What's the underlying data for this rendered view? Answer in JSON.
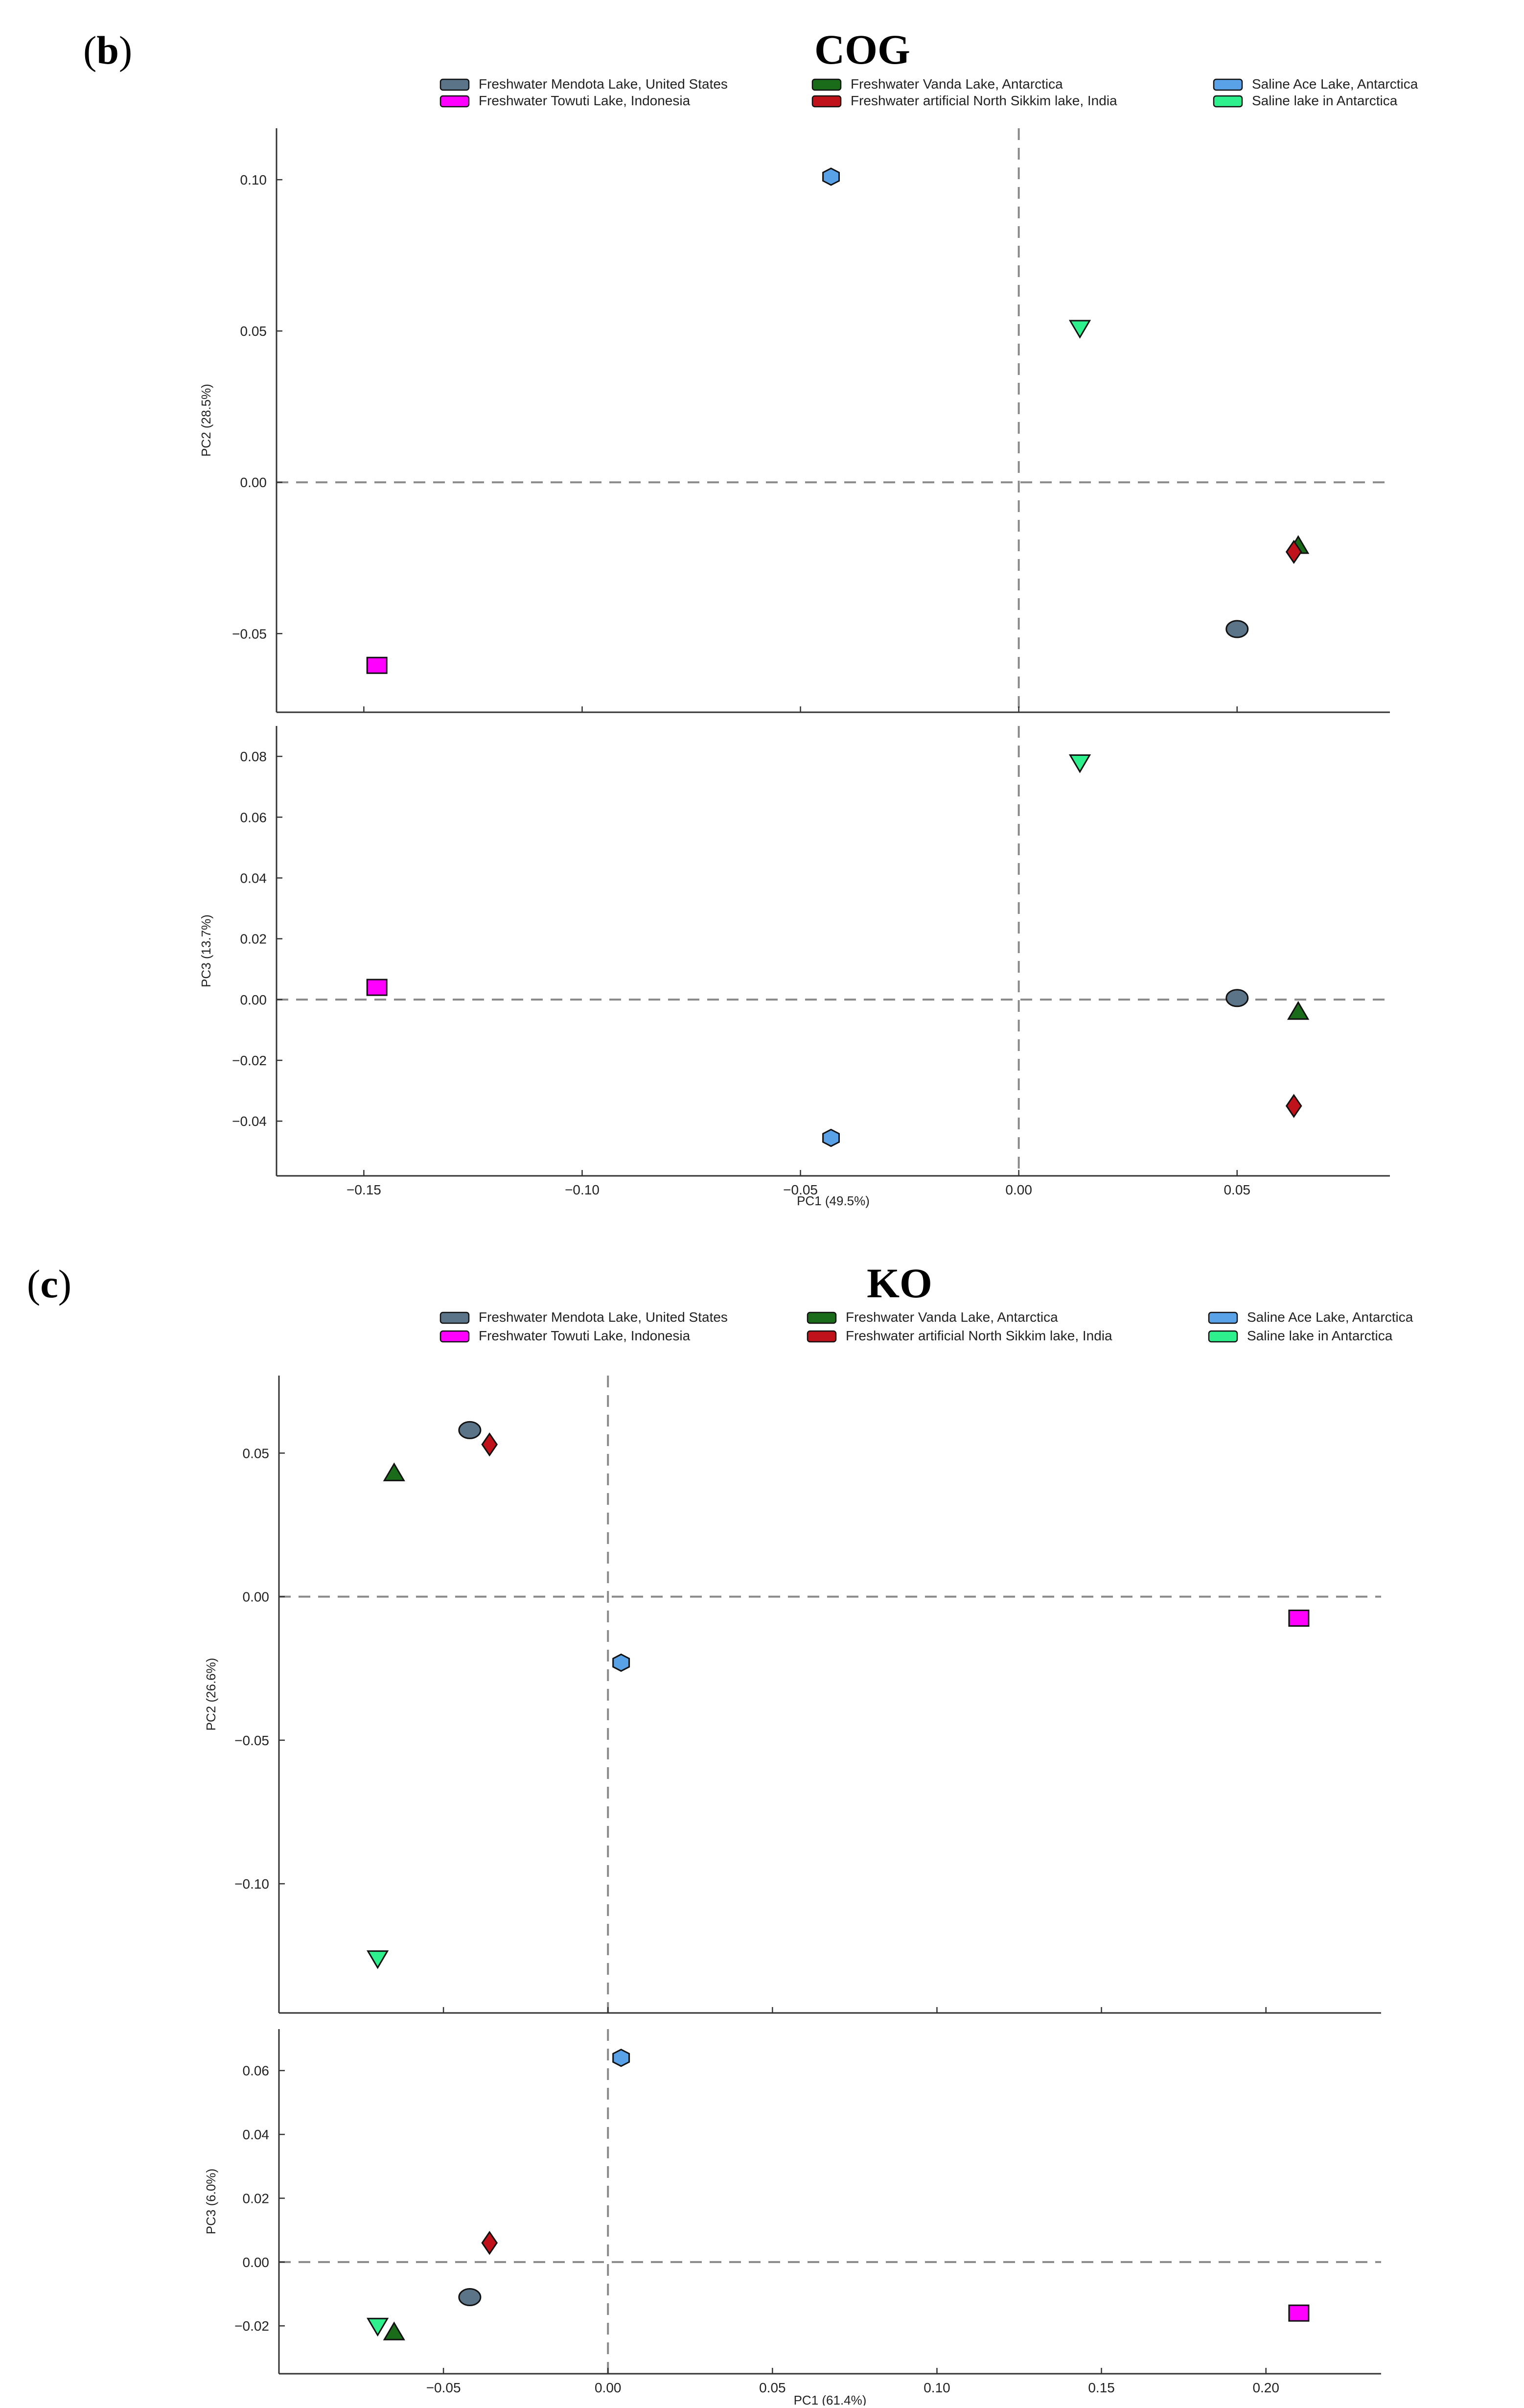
{
  "figure": {
    "panel_b": {
      "letter": "b",
      "title": "COG"
    },
    "panel_c": {
      "letter": "c",
      "title": "KO"
    }
  },
  "legend": [
    {
      "key": "mendota",
      "label": "Freshwater Mendota Lake, United States",
      "color": "#5b7488",
      "shape": "circle"
    },
    {
      "key": "towuti",
      "label": "Freshwater Towuti Lake, Indonesia",
      "color": "#ff00ff",
      "shape": "square"
    },
    {
      "key": "vanda",
      "label": "Freshwater Vanda Lake, Antarctica",
      "color": "#1a6b1a",
      "shape": "triangle"
    },
    {
      "key": "sikkim",
      "label": "Freshwater artificial North Sikkim lake, India",
      "color": "#c0121a",
      "shape": "diamond"
    },
    {
      "key": "ace",
      "label": "Saline Ace Lake, Antarctica",
      "color": "#5aa2e8",
      "shape": "hexagon"
    },
    {
      "key": "saline",
      "label": "Saline lake in Antarctica",
      "color": "#2ef08c",
      "shape": "triangle-down"
    }
  ],
  "chart_data": [
    {
      "id": "cog-pc1-pc2",
      "panel": "b",
      "type": "scatter",
      "title": "COG",
      "xlabel": "",
      "ylabel": "PC2 (28.5%)",
      "xlim": [
        -0.17,
        0.085
      ],
      "ylim": [
        -0.076,
        0.117
      ],
      "xticks": [
        -0.15,
        -0.1,
        -0.05,
        0.0,
        0.05
      ],
      "xtick_labels": [
        "",
        "",
        "",
        "",
        ""
      ],
      "yticks": [
        -0.05,
        0.0,
        0.05,
        0.1
      ],
      "ytick_labels": [
        "−0.05",
        "0.00",
        "0.05",
        "0.10"
      ],
      "points": [
        {
          "key": "towuti",
          "x": -0.147,
          "y": -0.0605
        },
        {
          "key": "ace",
          "x": -0.043,
          "y": 0.101
        },
        {
          "key": "saline",
          "x": 0.014,
          "y": 0.051
        },
        {
          "key": "vanda",
          "x": 0.064,
          "y": -0.021
        },
        {
          "key": "sikkim",
          "x": 0.063,
          "y": -0.023
        },
        {
          "key": "mendota",
          "x": 0.05,
          "y": -0.0485
        }
      ]
    },
    {
      "id": "cog-pc1-pc3",
      "panel": "b",
      "type": "scatter",
      "title": "",
      "xlabel": "PC1 (49.5%)",
      "ylabel": "PC3 (13.7%)",
      "xlim": [
        -0.17,
        0.085
      ],
      "ylim": [
        -0.058,
        0.09
      ],
      "xticks": [
        -0.15,
        -0.1,
        -0.05,
        0.0,
        0.05
      ],
      "xtick_labels": [
        "−0.15",
        "−0.10",
        "−0.05",
        "0.00",
        "0.05"
      ],
      "yticks": [
        -0.04,
        -0.02,
        0.0,
        0.02,
        0.04,
        0.06,
        0.08
      ],
      "ytick_labels": [
        "−0.04",
        "−0.02",
        "0.00",
        "0.02",
        "0.04",
        "0.06",
        "0.08"
      ],
      "points": [
        {
          "key": "towuti",
          "x": -0.147,
          "y": 0.004
        },
        {
          "key": "ace",
          "x": -0.043,
          "y": -0.0455
        },
        {
          "key": "saline",
          "x": 0.014,
          "y": 0.078
        },
        {
          "key": "mendota",
          "x": 0.05,
          "y": 0.0005
        },
        {
          "key": "vanda",
          "x": 0.064,
          "y": -0.004
        },
        {
          "key": "sikkim",
          "x": 0.063,
          "y": -0.035
        }
      ]
    },
    {
      "id": "ko-pc1-pc2",
      "panel": "c",
      "type": "scatter",
      "title": "KO",
      "xlabel": "",
      "ylabel": "PC2 (26.6%)",
      "xlim": [
        -0.1,
        0.235
      ],
      "ylim": [
        -0.145,
        0.077
      ],
      "xticks": [
        -0.05,
        0.0,
        0.05,
        0.1,
        0.15,
        0.2
      ],
      "xtick_labels": [
        "",
        "",
        "",
        "",
        "",
        ""
      ],
      "yticks": [
        -0.1,
        -0.05,
        0.0,
        0.05
      ],
      "ytick_labels": [
        "−0.10",
        "−0.05",
        "0.00",
        "0.05"
      ],
      "points": [
        {
          "key": "mendota",
          "x": -0.042,
          "y": 0.058
        },
        {
          "key": "sikkim",
          "x": -0.036,
          "y": 0.053
        },
        {
          "key": "vanda",
          "x": -0.065,
          "y": 0.043
        },
        {
          "key": "ace",
          "x": 0.004,
          "y": -0.023
        },
        {
          "key": "towuti",
          "x": 0.21,
          "y": -0.0075
        },
        {
          "key": "saline",
          "x": -0.07,
          "y": -0.126
        }
      ]
    },
    {
      "id": "ko-pc1-pc3",
      "panel": "c",
      "type": "scatter",
      "title": "",
      "xlabel": "PC1 (61.4%)",
      "ylabel": "PC3 (6.0%)",
      "xlim": [
        -0.1,
        0.235
      ],
      "ylim": [
        -0.035,
        0.073
      ],
      "xticks": [
        -0.05,
        0.0,
        0.05,
        0.1,
        0.15,
        0.2
      ],
      "xtick_labels": [
        "−0.05",
        "0.00",
        "0.05",
        "0.10",
        "0.15",
        "0.20"
      ],
      "yticks": [
        -0.02,
        0.0,
        0.02,
        0.04,
        0.06
      ],
      "ytick_labels": [
        "−0.02",
        "0.00",
        "0.02",
        "0.04",
        "0.06"
      ],
      "points": [
        {
          "key": "ace",
          "x": 0.004,
          "y": 0.064
        },
        {
          "key": "sikkim",
          "x": -0.036,
          "y": 0.006
        },
        {
          "key": "mendota",
          "x": -0.042,
          "y": -0.011
        },
        {
          "key": "saline",
          "x": -0.07,
          "y": -0.02
        },
        {
          "key": "vanda",
          "x": -0.065,
          "y": -0.022
        },
        {
          "key": "towuti",
          "x": 0.21,
          "y": -0.016
        }
      ]
    }
  ]
}
